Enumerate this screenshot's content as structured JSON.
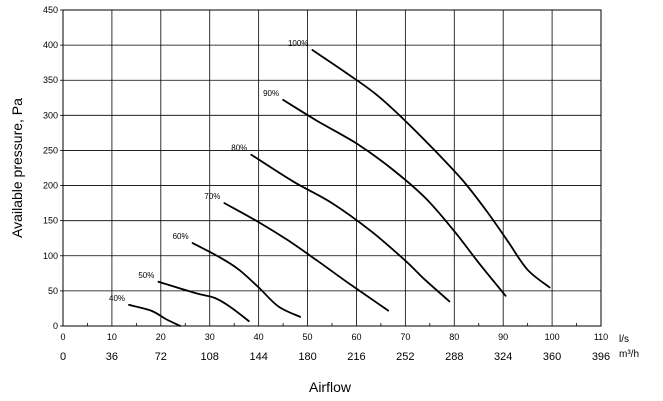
{
  "chart_data": {
    "type": "line",
    "title": "",
    "xlabel": "Airflow",
    "ylabel": "Available pressure, Pa",
    "x_unit": "l/s",
    "x_secondary_unit": "m³/h",
    "xlim": [
      0,
      110
    ],
    "ylim": [
      0,
      450
    ],
    "grid": true,
    "x_ticks": [
      0,
      10,
      20,
      30,
      40,
      50,
      60,
      70,
      80,
      90,
      100,
      110
    ],
    "x_secondary_ticks": [
      "0",
      "36",
      "72",
      "108",
      "144",
      "180",
      "216",
      "252",
      "288",
      "324",
      "360",
      "396"
    ],
    "y_ticks": [
      0,
      50,
      100,
      150,
      200,
      250,
      300,
      350,
      400,
      450
    ],
    "series": [
      {
        "name": "40%",
        "points": [
          [
            13.5,
            30
          ],
          [
            18,
            22
          ],
          [
            21,
            10
          ],
          [
            24,
            0
          ]
        ]
      },
      {
        "name": "60%",
        "points": [
          [
            26.5,
            118
          ],
          [
            32,
            98
          ],
          [
            36,
            80
          ],
          [
            40,
            55
          ],
          [
            44,
            28
          ],
          [
            48.5,
            13
          ]
        ]
      },
      {
        "name": "50%",
        "points": [
          [
            19.5,
            63
          ],
          [
            27,
            47
          ],
          [
            31,
            40
          ],
          [
            34,
            28
          ],
          [
            38,
            7
          ]
        ]
      },
      {
        "name": "70%",
        "points": [
          [
            33,
            175
          ],
          [
            40,
            148
          ],
          [
            46,
            122
          ],
          [
            52,
            93
          ],
          [
            59,
            58
          ],
          [
            66.5,
            22
          ]
        ]
      },
      {
        "name": "80%",
        "points": [
          [
            38.5,
            244
          ],
          [
            47,
            206
          ],
          [
            55,
            175
          ],
          [
            63,
            135
          ],
          [
            70,
            93
          ],
          [
            74,
            66
          ],
          [
            79,
            35
          ]
        ]
      },
      {
        "name": "90%",
        "points": [
          [
            45,
            322
          ],
          [
            52,
            292
          ],
          [
            60,
            260
          ],
          [
            67,
            225
          ],
          [
            74,
            183
          ],
          [
            80,
            135
          ],
          [
            85,
            90
          ],
          [
            90.5,
            43
          ]
        ]
      },
      {
        "name": "100%",
        "points": [
          [
            51,
            393
          ],
          [
            58,
            360
          ],
          [
            64,
            330
          ],
          [
            70,
            292
          ],
          [
            76,
            250
          ],
          [
            82,
            205
          ],
          [
            87,
            160
          ],
          [
            91,
            120
          ],
          [
            95,
            80
          ],
          [
            99.5,
            55
          ]
        ]
      }
    ]
  }
}
